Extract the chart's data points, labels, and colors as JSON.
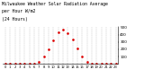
{
  "title": "Milwaukee Weather Solar Radiation Average",
  "subtitle1": "per Hour W/m2",
  "subtitle2": "(24 Hours)",
  "hours": [
    0,
    1,
    2,
    3,
    4,
    5,
    6,
    7,
    8,
    9,
    10,
    11,
    12,
    13,
    14,
    15,
    16,
    17,
    18,
    19,
    20,
    21,
    22,
    23
  ],
  "values": [
    0,
    0,
    0,
    0,
    0,
    0,
    2,
    30,
    100,
    200,
    320,
    430,
    470,
    420,
    330,
    210,
    100,
    30,
    2,
    0,
    0,
    0,
    0,
    0
  ],
  "line_color": "#dd0000",
  "bg_color": "#ffffff",
  "grid_color": "#999999",
  "ylim": [
    0,
    500
  ],
  "yticks": [
    100,
    200,
    300,
    400,
    500
  ],
  "title_fontsize": 3.5,
  "tick_fontsize": 3.0
}
